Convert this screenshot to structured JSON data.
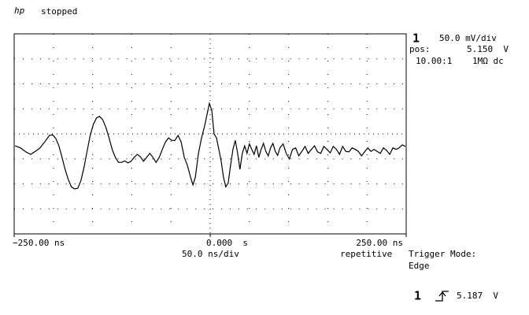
{
  "header": {
    "logo": "hp",
    "status": "stopped"
  },
  "channel": {
    "number": "1",
    "scale": "50.0 mV/div",
    "pos_label": "pos:",
    "pos_value": "5.150  V",
    "probe": "10.00:1",
    "coupling": "1MΩ dc"
  },
  "timebase": {
    "scale": "50.0 ns/div",
    "mode": "repetitive"
  },
  "trigger": {
    "mode_label": "Trigger Mode:",
    "mode": "Edge",
    "source": "1",
    "level": "5.187  V"
  },
  "chart_data": {
    "type": "line",
    "color": "#000000",
    "xlim": [
      -250,
      250
    ],
    "ylim": [
      4.95,
      5.35
    ],
    "xticks": [
      {
        "value": -250,
        "label": "−250.00 ns"
      },
      {
        "value": 0,
        "label": "0.000  s"
      },
      {
        "value": 250,
        "label": "250.00 ns"
      }
    ],
    "x": [
      -249,
      -242,
      -235,
      -229,
      -223,
      -217,
      -211,
      -205,
      -201,
      -197,
      -193,
      -189,
      -185,
      -181,
      -177,
      -173,
      -169,
      -165,
      -161,
      -157,
      -153,
      -149,
      -145,
      -141,
      -137,
      -133,
      -129,
      -125,
      -121,
      -117,
      -113,
      -109,
      -105,
      -101,
      -97,
      -93,
      -89,
      -85,
      -81,
      -77,
      -73,
      -69,
      -65,
      -61,
      -57,
      -53,
      -49,
      -45,
      -41,
      -37,
      -33,
      -29,
      -25,
      -22,
      -19,
      -15,
      -11,
      -7,
      -4,
      -1,
      2,
      5,
      8,
      11,
      14,
      17,
      20,
      23,
      26,
      29,
      32,
      35,
      38,
      41,
      44,
      47,
      50,
      53,
      56,
      59,
      62,
      65,
      68,
      71,
      74,
      77,
      80,
      83,
      86,
      89,
      93,
      97,
      101,
      105,
      109,
      113,
      117,
      121,
      125,
      129,
      133,
      137,
      141,
      145,
      149,
      153,
      157,
      161,
      165,
      169,
      173,
      177,
      181,
      185,
      189,
      193,
      197,
      201,
      205,
      209,
      213,
      217,
      221,
      225,
      229,
      233,
      237,
      241,
      245,
      249
    ],
    "values": [
      5.126,
      5.122,
      5.114,
      5.109,
      5.115,
      5.122,
      5.134,
      5.147,
      5.148,
      5.141,
      5.126,
      5.103,
      5.079,
      5.059,
      5.044,
      5.04,
      5.041,
      5.056,
      5.082,
      5.115,
      5.147,
      5.169,
      5.182,
      5.185,
      5.178,
      5.163,
      5.142,
      5.119,
      5.103,
      5.093,
      5.093,
      5.096,
      5.092,
      5.095,
      5.103,
      5.109,
      5.104,
      5.095,
      5.103,
      5.111,
      5.103,
      5.093,
      5.103,
      5.119,
      5.134,
      5.142,
      5.137,
      5.137,
      5.147,
      5.134,
      5.103,
      5.087,
      5.063,
      5.048,
      5.063,
      5.111,
      5.142,
      5.166,
      5.189,
      5.211,
      5.197,
      5.15,
      5.142,
      5.119,
      5.096,
      5.063,
      5.044,
      5.052,
      5.087,
      5.119,
      5.137,
      5.111,
      5.079,
      5.111,
      5.126,
      5.111,
      5.13,
      5.119,
      5.109,
      5.126,
      5.103,
      5.119,
      5.131,
      5.115,
      5.106,
      5.122,
      5.131,
      5.115,
      5.107,
      5.122,
      5.13,
      5.111,
      5.1,
      5.119,
      5.122,
      5.106,
      5.115,
      5.125,
      5.111,
      5.119,
      5.126,
      5.114,
      5.111,
      5.125,
      5.119,
      5.112,
      5.125,
      5.119,
      5.109,
      5.125,
      5.115,
      5.114,
      5.122,
      5.119,
      5.115,
      5.106,
      5.114,
      5.122,
      5.115,
      5.119,
      5.115,
      5.111,
      5.122,
      5.117,
      5.109,
      5.122,
      5.119,
      5.122,
      5.128,
      5.125
    ]
  }
}
